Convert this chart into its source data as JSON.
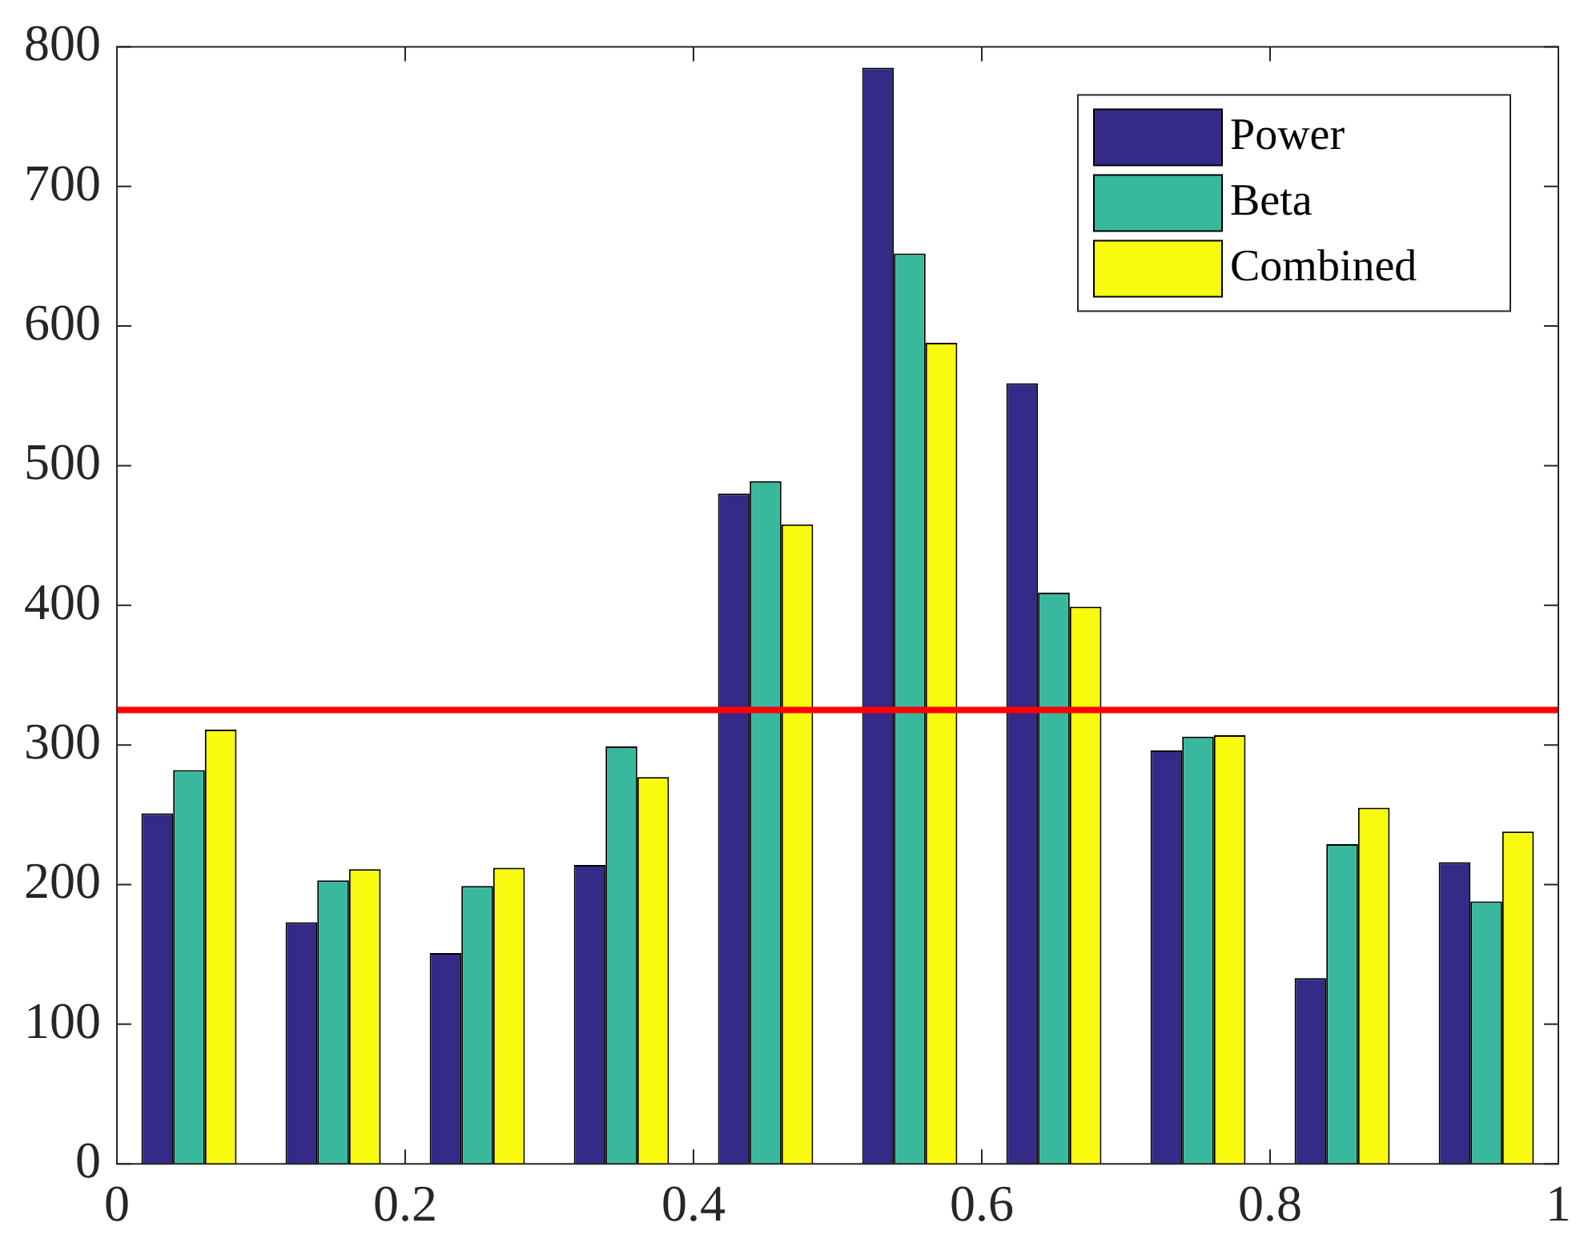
{
  "chart_data": {
    "type": "bar",
    "x": [
      0.05,
      0.15,
      0.25,
      0.35,
      0.45,
      0.55,
      0.65,
      0.75,
      0.85,
      0.95
    ],
    "series": [
      {
        "name": "Power",
        "color": "#352a87",
        "values": [
          251,
          173,
          151,
          214,
          480,
          785,
          559,
          296,
          133,
          216
        ]
      },
      {
        "name": "Beta",
        "color": "#38b99e",
        "values": [
          282,
          203,
          199,
          299,
          489,
          652,
          409,
          306,
          229,
          188
        ]
      },
      {
        "name": "Combined",
        "color": "#f9fb0e",
        "values": [
          311,
          211,
          212,
          277,
          458,
          588,
          399,
          307,
          255,
          238
        ]
      }
    ],
    "xlim": [
      0,
      1
    ],
    "xticks": [
      0,
      0.2,
      0.4,
      0.6,
      0.8,
      1
    ],
    "ylim": [
      0,
      800
    ],
    "yticks": [
      0,
      100,
      200,
      300,
      400,
      500,
      600,
      700,
      800
    ],
    "ref_lines": [
      {
        "axis": "y",
        "value": 325,
        "color": "#ff0000"
      }
    ],
    "legend": "top right",
    "grid": false
  }
}
